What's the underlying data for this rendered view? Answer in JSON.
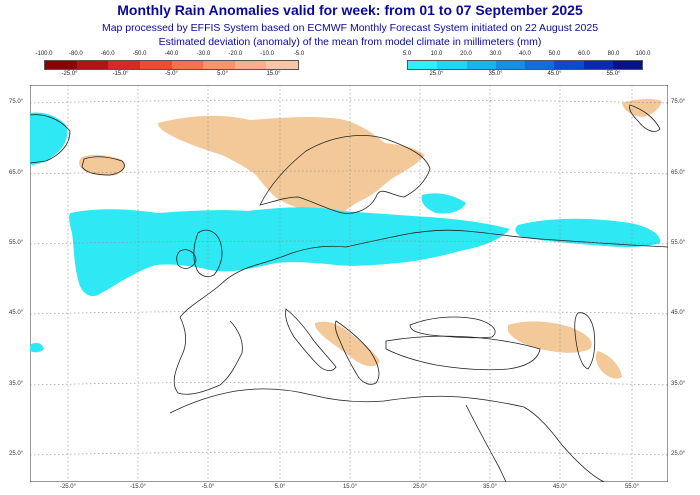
{
  "header": {
    "title": "Monthly Rain Anomalies valid for week: from 01 to 07 September 2025",
    "subtitle1": "Map processed by EFFIS System based on ECMWF Monthly Forecast System initiated on 22 August 2025",
    "subtitle2": "Estimated deviation (anomaly) of the mean from model climate in millimeters (mm)"
  },
  "legend_negative": {
    "top_labels": [
      "-100.0",
      "-80.0",
      "-60.0",
      "-50.0",
      "-40.0",
      "-30.0",
      "-20.0",
      "-10.0",
      "-5.0"
    ],
    "colors": [
      "#8b0000",
      "#b01414",
      "#d62828",
      "#ee4a3a",
      "#f5704f",
      "#f89270",
      "#f9ae90",
      "#f6c6a8"
    ],
    "bottom_labels": [
      "-25.0°",
      "-15.0°",
      "-5.0°",
      "5.0°",
      "15.0°"
    ]
  },
  "legend_positive": {
    "top_labels": [
      "5.0",
      "10.0",
      "20.0",
      "30.0",
      "40.0",
      "50.0",
      "60.0",
      "80.0",
      "100.0"
    ],
    "colors": [
      "#33eeff",
      "#22d4f5",
      "#18b4ee",
      "#1390e6",
      "#116cdc",
      "#0e48cc",
      "#0a28b0",
      "#06128a"
    ],
    "bottom_labels": [
      "25.0°",
      "35.0°",
      "45.0°",
      "55.0°"
    ]
  },
  "map": {
    "latitude_labels_left": [
      "75.0°",
      "65.0°",
      "55.0°",
      "45.0°",
      "35.0°",
      "25.0°"
    ],
    "latitude_labels_right": [
      "75.0°",
      "65.0°",
      "55.0°",
      "45.0°",
      "35.0°",
      "25.0°"
    ],
    "longitude_labels": [
      "-25.0°",
      "-15.0°",
      "-5.0°",
      "5.0°",
      "15.0°",
      "25.0°",
      "35.0°",
      "45.0°",
      "55.0°"
    ],
    "wet_color": "#2ee8f4",
    "dry_color": "#f3c99a",
    "land_line_color": "#222222",
    "grid_color": "#888888"
  }
}
